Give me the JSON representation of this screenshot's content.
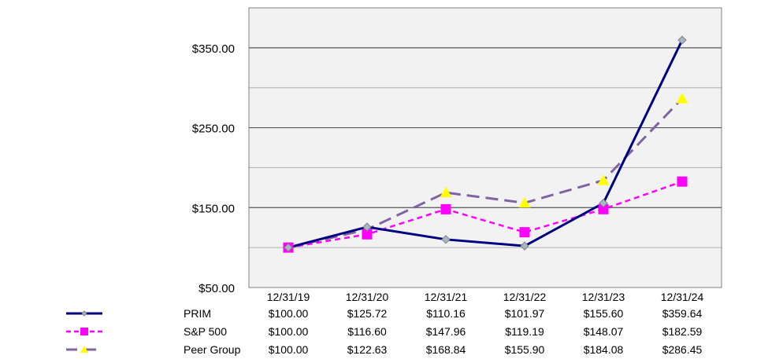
{
  "chart_data": {
    "type": "line",
    "title": "",
    "xlabel": "",
    "ylabel": "",
    "categories": [
      "12/31/19",
      "12/31/20",
      "12/31/21",
      "12/31/22",
      "12/31/23",
      "12/31/24"
    ],
    "ylim": [
      50,
      400
    ],
    "yticks": [
      50,
      150,
      250,
      350
    ],
    "ytick_labels": [
      "$50.00",
      "$150.00",
      "$250.00",
      "$350.00"
    ],
    "grid": true,
    "series": [
      {
        "name": "PRIM",
        "values": [
          100.0,
          125.72,
          110.16,
          101.97,
          155.6,
          359.64
        ],
        "value_labels": [
          "$100.00",
          "$125.72",
          "$110.16",
          "$101.97",
          "$155.60",
          "$359.64"
        ],
        "color": "#000080",
        "marker_color": "#A6B8C8",
        "marker": "diamond",
        "line_style": "solid"
      },
      {
        "name": "S&P 500",
        "values": [
          100.0,
          116.6,
          147.96,
          119.19,
          148.07,
          182.59
        ],
        "value_labels": [
          "$100.00",
          "$116.60",
          "$147.96",
          "$119.19",
          "$148.07",
          "$182.59"
        ],
        "color": "#FF00FF",
        "marker_color": "#FF00FF",
        "marker": "square",
        "line_style": "dashed"
      },
      {
        "name": "Peer Group",
        "values": [
          100.0,
          122.63,
          168.84,
          155.9,
          184.08,
          286.45
        ],
        "value_labels": [
          "$100.00",
          "$122.63",
          "$168.84",
          "$155.90",
          "$184.08",
          "$286.45"
        ],
        "color": "#8064A2",
        "marker_color": "#FFFF00",
        "marker": "triangle",
        "line_style": "long-dash"
      }
    ],
    "legend_placement": "bottom-left data table",
    "plot_background": "#F2F2F2"
  }
}
